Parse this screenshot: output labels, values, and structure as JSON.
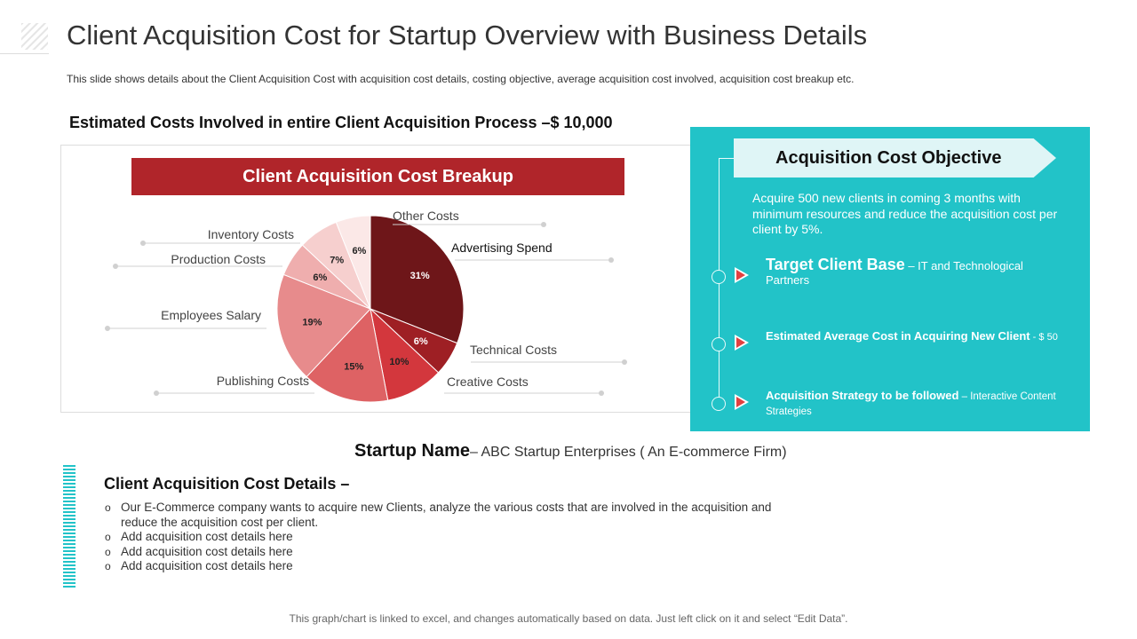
{
  "header": {
    "title": "Client Acquisition Cost for Startup Overview with Business Details",
    "subtitle": "This slide shows details about the Client Acquisition Cost with acquisition cost details, costing objective,  average  acquisition cost involved,  acquisition cost breakup etc."
  },
  "estimate": {
    "text": "Estimated Costs Involved in entire Client Acquisition Process –$ 10,000"
  },
  "chart_data": {
    "type": "pie",
    "title": "Client Acquisition Cost Breakup",
    "slices": [
      {
        "label": "Advertising Spend",
        "value": 31,
        "value_label": "31%",
        "color": "#6e1619"
      },
      {
        "label": "Technical Costs",
        "value": 6,
        "value_label": "6%",
        "color": "#9e1f24"
      },
      {
        "label": "Creative Costs",
        "value": 10,
        "value_label": "10%",
        "color": "#d3373d"
      },
      {
        "label": "Publishing Costs",
        "value": 15,
        "value_label": "15%",
        "color": "#de6264"
      },
      {
        "label": "Employees Salary",
        "value": 19,
        "value_label": "19%",
        "color": "#e78b8c"
      },
      {
        "label": "Production Costs",
        "value": 6,
        "value_label": "6%",
        "color": "#efaeae"
      },
      {
        "label": "Inventory Costs",
        "value": 7,
        "value_label": "7%",
        "color": "#f6cfce"
      },
      {
        "label": "Other Costs",
        "value": 6,
        "value_label": "6%",
        "color": "#fbe8e7"
      }
    ]
  },
  "objective": {
    "title": "Acquisition Cost Objective",
    "text": "Acquire 500 new clients in coming 3 months with minimum resources and reduce the acquisition cost per client by 5%.",
    "points": [
      {
        "heading": "Target Client Base",
        "text": " – IT and Technological Partners"
      },
      {
        "heading": "Estimated Average  Cost  in  Acquiring New Client",
        "text": " - $ 50"
      },
      {
        "heading": "Acquisition Strategy  to be followed",
        "text": " – Interactive Content Strategies"
      }
    ]
  },
  "startup": {
    "label": "Startup Name",
    "value": "– ABC Startup Enterprises ( An E-commerce Firm)"
  },
  "details": {
    "title": "Client Acquisition Cost Details –",
    "items": [
      "Our E-Commerce company wants to acquire new Clients, analyze the various costs that are involved in the acquisition and reduce the acquisition cost per client.",
      "Add acquisition cost details here",
      "Add acquisition cost details here",
      "Add acquisition cost details here"
    ]
  },
  "footer": {
    "text": "This graph/chart is linked to excel, and changes automatically based on data. Just left click on it and select “Edit Data”."
  },
  "colors": {
    "accent_teal": "#22c3c8",
    "banner_red": "#b0252a",
    "tab_bg": "#dff5f6"
  }
}
